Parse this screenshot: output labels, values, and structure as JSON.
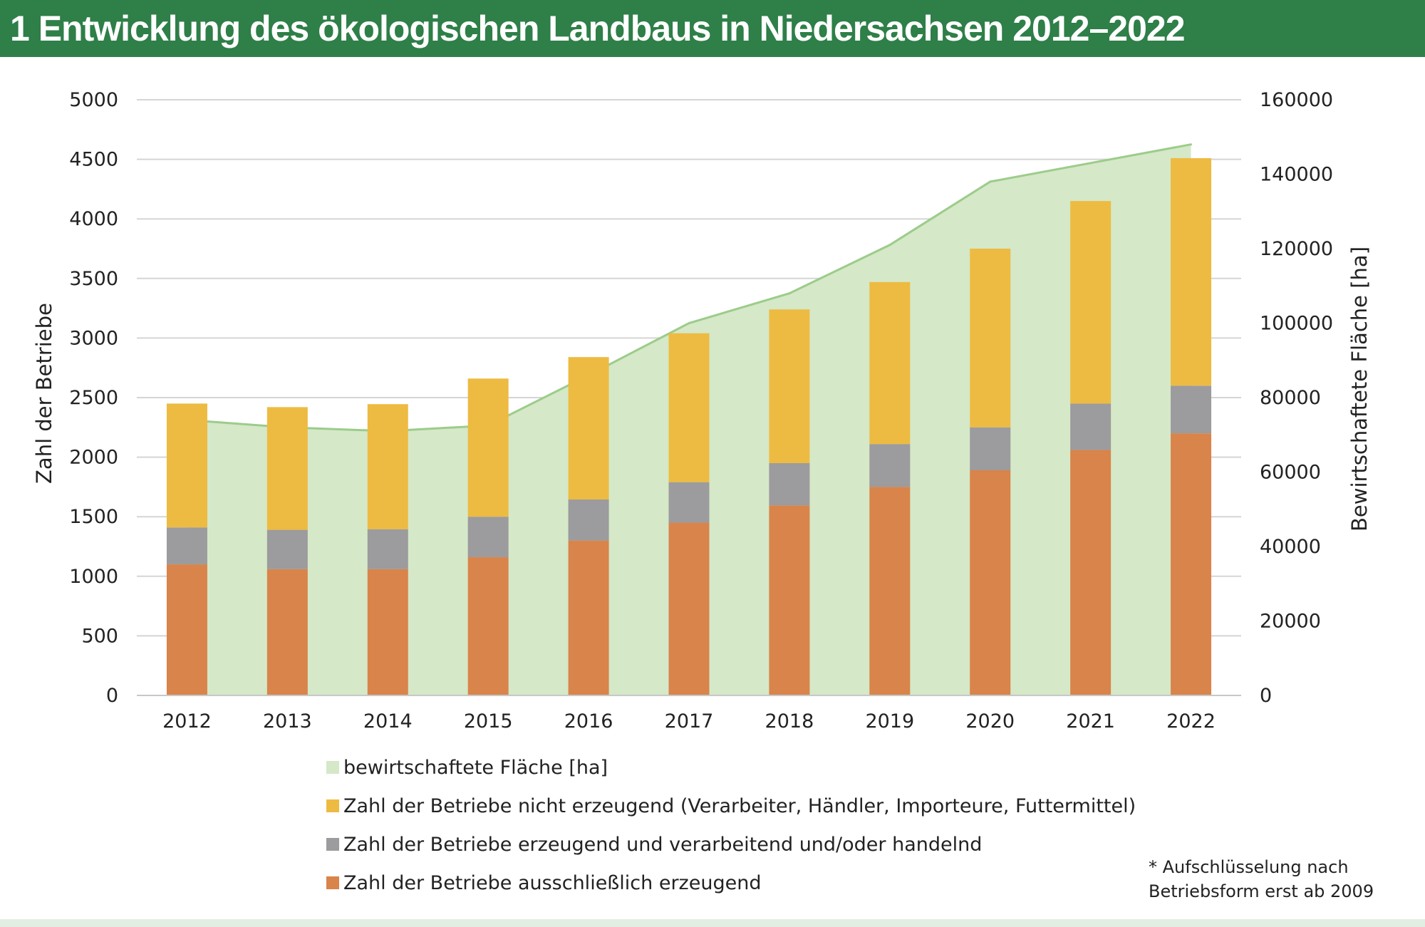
{
  "title": "1 Entwicklung des ökologischen Landbaus in Niedersachsen 2012–2022",
  "footnote": {
    "line1": "* Aufschlüsselung nach",
    "line2": "Betriebsform erst ab 2009"
  },
  "colors": {
    "title_bg": "#2e7f48",
    "area_fill": "#d5e8c8",
    "area_line": "#9ccc8a",
    "nicht_erzeugend": "#edbb42",
    "erzeugend_verarbeitend": "#9c9b9d",
    "ausschliesslich": "#d9844a",
    "grid": "#d5d5d5"
  },
  "chart_data": {
    "type": "bar",
    "stacked": true,
    "categories": [
      "2012",
      "2013",
      "2014",
      "2015",
      "2016",
      "2017",
      "2018",
      "2019",
      "2020",
      "2021",
      "2022"
    ],
    "ylabel": "Zahl der Betriebe",
    "ylim": [
      0,
      5000
    ],
    "yticks": [
      "0",
      "500",
      "1000",
      "1500",
      "2000",
      "2500",
      "3000",
      "3500",
      "4000",
      "4500",
      "5000"
    ],
    "y2label": "Bewirtschaftete Fläche [ha]",
    "y2lim": [
      0,
      160000
    ],
    "y2ticks": [
      "0",
      "20000",
      "40000",
      "60000",
      "80000",
      "100000",
      "120000",
      "140000",
      "160000"
    ],
    "grid": true,
    "legend_position": "bottom",
    "area_series": {
      "name": "bewirtschaftete Fläche [ha]",
      "axis": "right",
      "values": [
        74000,
        72000,
        71000,
        72500,
        86000,
        100000,
        108000,
        121000,
        138000,
        143000,
        148000
      ]
    },
    "series": [
      {
        "name": "Zahl der Betriebe ausschließlich erzeugend",
        "color_key": "ausschliesslich",
        "values": [
          1100,
          1060,
          1060,
          1160,
          1300,
          1450,
          1595,
          1750,
          1890,
          2060,
          2200
        ]
      },
      {
        "name": "Zahl der Betriebe erzeugend und verarbeitend und/oder handelnd",
        "color_key": "erzeugend_verarbeitend",
        "values": [
          310,
          330,
          335,
          340,
          345,
          340,
          355,
          360,
          360,
          390,
          400
        ]
      },
      {
        "name": "Zahl der Betriebe nicht erzeugend (Verarbeiter, Händler, Importeure, Futtermittel)",
        "color_key": "nicht_erzeugend",
        "values": [
          1040,
          1030,
          1050,
          1160,
          1195,
          1250,
          1290,
          1360,
          1500,
          1700,
          1910
        ]
      }
    ],
    "legend": [
      {
        "label": "bewirtschaftete Fläche [ha]",
        "color_key": "area_fill"
      },
      {
        "label": "Zahl der Betriebe nicht erzeugend (Verarbeiter, Händler, Importeure, Futtermittel)",
        "color_key": "nicht_erzeugend"
      },
      {
        "label": "Zahl der Betriebe erzeugend und verarbeitend und/oder handelnd",
        "color_key": "erzeugend_verarbeitend"
      },
      {
        "label": "Zahl der Betriebe ausschließlich erzeugend",
        "color_key": "ausschliesslich"
      }
    ]
  }
}
